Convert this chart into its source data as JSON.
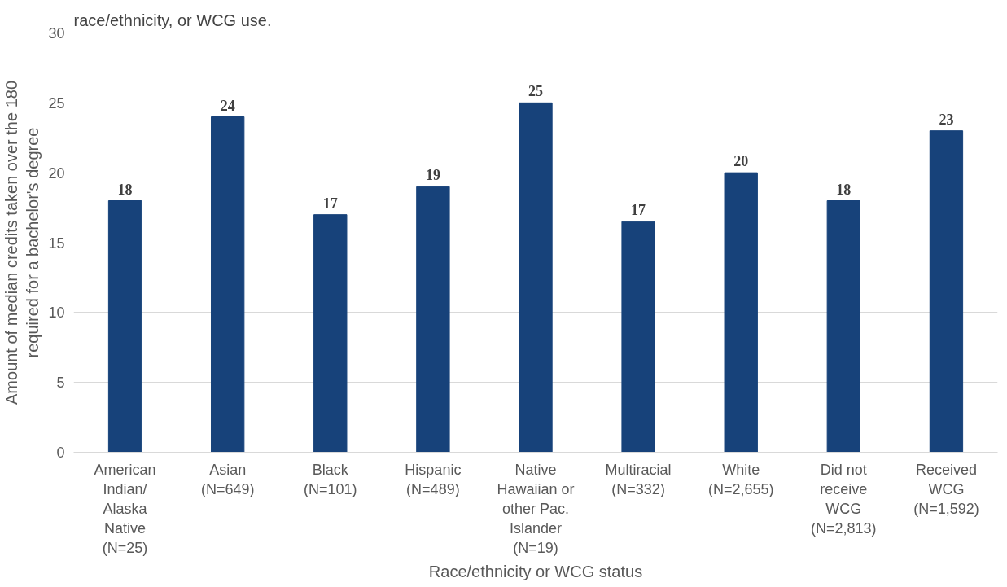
{
  "chart_data": {
    "type": "bar",
    "title": "race/ethnicity, or WCG use.",
    "categories": [
      "American\nIndian/\nAlaska\nNative\n(N=25)",
      "Asian\n(N=649)",
      "Black\n(N=101)",
      "Hispanic\n(N=489)",
      "Native\nHawaiian or\nother Pac.\nIslander\n(N=19)",
      "Multiracial\n(N=332)",
      "White\n(N=2,655)",
      "Did not\nreceive\nWCG\n(N=2,813)",
      "Received\nWCG\n(N=1,592)"
    ],
    "values": [
      18,
      24,
      17,
      19,
      25,
      16.5,
      20,
      18,
      23
    ],
    "value_labels": [
      "18",
      "24",
      "17",
      "19",
      "25",
      "17",
      "20",
      "18",
      "23"
    ],
    "color": "#17427a",
    "xlabel": "Race/ethnicity or WCG status",
    "ylabel": "Amount of median credits taken over the 180\nrequired for a bachelor's degree",
    "ylim": [
      0,
      30
    ],
    "yticks": [
      0,
      5,
      10,
      15,
      20,
      25,
      30
    ],
    "grid": "y"
  }
}
